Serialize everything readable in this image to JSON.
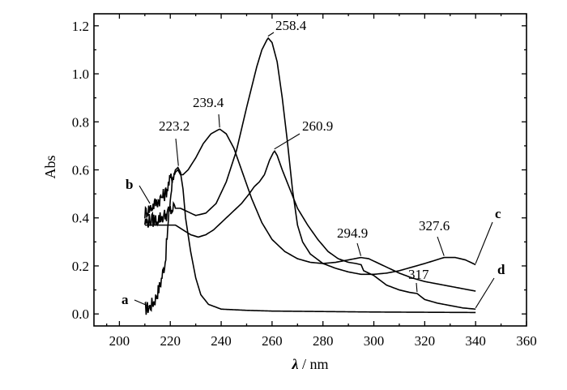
{
  "chart_data": {
    "type": "line",
    "xlabel_italic": "λ",
    "xlabel_unit": " / nm",
    "ylabel": "Abs",
    "xlim": [
      190,
      360
    ],
    "ylim": [
      -0.05,
      1.25
    ],
    "xticks": [
      200,
      220,
      240,
      260,
      280,
      300,
      320,
      340,
      360
    ],
    "yticks": [
      0.0,
      0.2,
      0.4,
      0.6,
      0.8,
      1.0,
      1.2
    ],
    "ytick_labels": [
      "0.0",
      "0.2",
      "0.4",
      "0.6",
      "0.8",
      "1.0",
      "1.2"
    ],
    "series": [
      {
        "name": "a",
        "noisy_until": 221,
        "points": [
          [
            210,
            0.02
          ],
          [
            212,
            0.03
          ],
          [
            214,
            0.06
          ],
          [
            216,
            0.12
          ],
          [
            218,
            0.22
          ],
          [
            219,
            0.35
          ],
          [
            220,
            0.48
          ],
          [
            221,
            0.56
          ],
          [
            222,
            0.6
          ],
          [
            223,
            0.61
          ],
          [
            224,
            0.59
          ],
          [
            225,
            0.52
          ],
          [
            226,
            0.4
          ],
          [
            228,
            0.26
          ],
          [
            230,
            0.15
          ],
          [
            232,
            0.08
          ],
          [
            235,
            0.04
          ],
          [
            240,
            0.02
          ],
          [
            250,
            0.015
          ],
          [
            260,
            0.012
          ],
          [
            280,
            0.01
          ],
          [
            300,
            0.008
          ],
          [
            320,
            0.007
          ],
          [
            340,
            0.006
          ]
        ]
      },
      {
        "name": "b",
        "noisy_until": 222,
        "points": [
          [
            210,
            0.42
          ],
          [
            212,
            0.44
          ],
          [
            214,
            0.46
          ],
          [
            216,
            0.48
          ],
          [
            218,
            0.5
          ],
          [
            220,
            0.56
          ],
          [
            222,
            0.59
          ],
          [
            223,
            0.6
          ],
          [
            224,
            0.58
          ],
          [
            225,
            0.58
          ],
          [
            227,
            0.6
          ],
          [
            230,
            0.65
          ],
          [
            233,
            0.71
          ],
          [
            236,
            0.75
          ],
          [
            239.4,
            0.77
          ],
          [
            242,
            0.75
          ],
          [
            245,
            0.69
          ],
          [
            248,
            0.6
          ],
          [
            252,
            0.48
          ],
          [
            256,
            0.38
          ],
          [
            260,
            0.31
          ],
          [
            265,
            0.26
          ],
          [
            270,
            0.23
          ],
          [
            275,
            0.215
          ],
          [
            280,
            0.21
          ],
          [
            285,
            0.215
          ],
          [
            290,
            0.225
          ],
          [
            294.9,
            0.235
          ],
          [
            298,
            0.23
          ],
          [
            302,
            0.21
          ],
          [
            306,
            0.19
          ],
          [
            310,
            0.17
          ],
          [
            315,
            0.15
          ],
          [
            320,
            0.135
          ],
          [
            325,
            0.125
          ],
          [
            330,
            0.115
          ],
          [
            335,
            0.105
          ],
          [
            340,
            0.095
          ]
        ]
      },
      {
        "name": "c",
        "noisy_until": 222,
        "points": [
          [
            210,
            0.38
          ],
          [
            212,
            0.39
          ],
          [
            214,
            0.39
          ],
          [
            216,
            0.4
          ],
          [
            218,
            0.41
          ],
          [
            220,
            0.43
          ],
          [
            222,
            0.44
          ],
          [
            224,
            0.44
          ],
          [
            226,
            0.43
          ],
          [
            228,
            0.42
          ],
          [
            230,
            0.41
          ],
          [
            234,
            0.42
          ],
          [
            238,
            0.46
          ],
          [
            242,
            0.55
          ],
          [
            246,
            0.68
          ],
          [
            250,
            0.86
          ],
          [
            254,
            1.03
          ],
          [
            256,
            1.1
          ],
          [
            258.4,
            1.15
          ],
          [
            260,
            1.13
          ],
          [
            262,
            1.05
          ],
          [
            264,
            0.9
          ],
          [
            266,
            0.72
          ],
          [
            268,
            0.52
          ],
          [
            270,
            0.37
          ],
          [
            272,
            0.3
          ],
          [
            275,
            0.25
          ],
          [
            280,
            0.21
          ],
          [
            285,
            0.19
          ],
          [
            290,
            0.175
          ],
          [
            295,
            0.165
          ],
          [
            300,
            0.165
          ],
          [
            305,
            0.17
          ],
          [
            310,
            0.18
          ],
          [
            315,
            0.195
          ],
          [
            320,
            0.21
          ],
          [
            327.6,
            0.235
          ],
          [
            332,
            0.235
          ],
          [
            336,
            0.225
          ],
          [
            340,
            0.205
          ]
        ]
      },
      {
        "name": "d",
        "noisy_until": 0,
        "points": [
          [
            210,
            0.37
          ],
          [
            214,
            0.37
          ],
          [
            218,
            0.37
          ],
          [
            222,
            0.37
          ],
          [
            225,
            0.35
          ],
          [
            228,
            0.33
          ],
          [
            231,
            0.32
          ],
          [
            234,
            0.33
          ],
          [
            237,
            0.35
          ],
          [
            240,
            0.38
          ],
          [
            244,
            0.42
          ],
          [
            248,
            0.46
          ],
          [
            251,
            0.5
          ],
          [
            253,
            0.53
          ],
          [
            255,
            0.55
          ],
          [
            257,
            0.58
          ],
          [
            259,
            0.64
          ],
          [
            260.9,
            0.68
          ],
          [
            262,
            0.66
          ],
          [
            264,
            0.6
          ],
          [
            267,
            0.52
          ],
          [
            270,
            0.44
          ],
          [
            274,
            0.37
          ],
          [
            278,
            0.31
          ],
          [
            282,
            0.26
          ],
          [
            286,
            0.23
          ],
          [
            290,
            0.215
          ],
          [
            293,
            0.21
          ],
          [
            295,
            0.205
          ],
          [
            296,
            0.18
          ],
          [
            300,
            0.16
          ],
          [
            305,
            0.12
          ],
          [
            310,
            0.1
          ],
          [
            314,
            0.09
          ],
          [
            317,
            0.085
          ],
          [
            320,
            0.06
          ],
          [
            325,
            0.045
          ],
          [
            330,
            0.035
          ],
          [
            335,
            0.025
          ],
          [
            340,
            0.02
          ]
        ]
      }
    ],
    "peak_labels": [
      {
        "text": "223.2",
        "x": 223.2,
        "y": 0.61
      },
      {
        "text": "239.4",
        "x": 239.4,
        "y": 0.77
      },
      {
        "text": "258.4",
        "x": 258.4,
        "y": 1.15
      },
      {
        "text": "260.9",
        "x": 260.9,
        "y": 0.68
      },
      {
        "text": "294.9",
        "x": 294.9,
        "y": 0.235
      },
      {
        "text": "327.6",
        "x": 327.6,
        "y": 0.235
      },
      {
        "text": "317",
        "x": 317.0,
        "y": 0.085
      }
    ]
  }
}
